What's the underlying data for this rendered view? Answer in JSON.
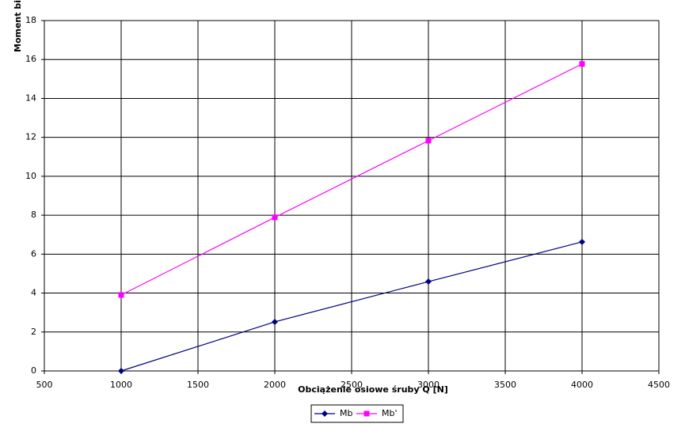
{
  "chart_data": {
    "type": "line",
    "x_label": "Obciążenie osiowe śruby Q [N]",
    "y_label": "Moment bi",
    "x": [
      1000,
      2000,
      3000,
      4000
    ],
    "series": [
      {
        "name": "Mb",
        "color": "#000080",
        "marker": "diamond",
        "values": [
          0,
          2.52,
          4.59,
          6.63
        ]
      },
      {
        "name": "Mb'",
        "color": "#ff00ff",
        "marker": "square",
        "values": [
          3.9,
          7.89,
          11.83,
          15.77
        ]
      }
    ],
    "xlim": [
      500,
      4500
    ],
    "xticks": [
      500,
      1000,
      1500,
      2000,
      2500,
      3000,
      3500,
      4000,
      4500
    ],
    "ylim": [
      0,
      18
    ],
    "yticks": [
      0,
      2,
      4,
      6,
      8,
      10,
      12,
      14,
      16,
      18
    ],
    "grid": true,
    "legend": "bottom"
  }
}
